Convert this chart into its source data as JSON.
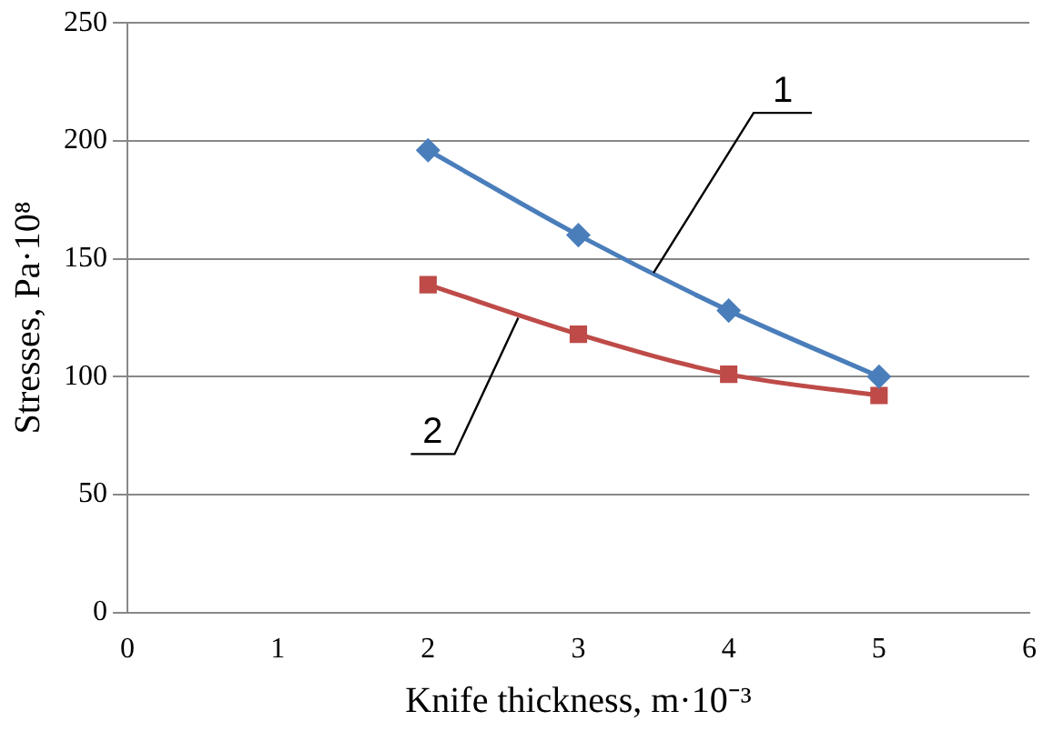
{
  "chart_data": {
    "type": "line",
    "xlabel": "Knife thickness, m·10⁻³",
    "ylabel": "Stresses, Pa·10⁸",
    "xlim": [
      0,
      6
    ],
    "xticks": [
      0,
      1,
      2,
      3,
      4,
      5,
      6
    ],
    "ylim": [
      0,
      250
    ],
    "yticks": [
      0,
      50,
      100,
      150,
      200,
      250
    ],
    "grid": "y",
    "legend": false,
    "series": [
      {
        "x": [
          2,
          3,
          4,
          5
        ],
        "values": [
          196,
          160,
          128,
          100
        ],
        "color": "#4a7ebb",
        "marker": "diamond"
      },
      {
        "x": [
          2,
          3,
          4,
          5
        ],
        "values": [
          139,
          118,
          101,
          92
        ],
        "color": "#be4b48",
        "marker": "square"
      }
    ],
    "annotations": [
      {
        "text": "1",
        "x": 3.5,
        "y": 144
      },
      {
        "text": "2",
        "x": 2.6,
        "y": 125
      }
    ]
  }
}
